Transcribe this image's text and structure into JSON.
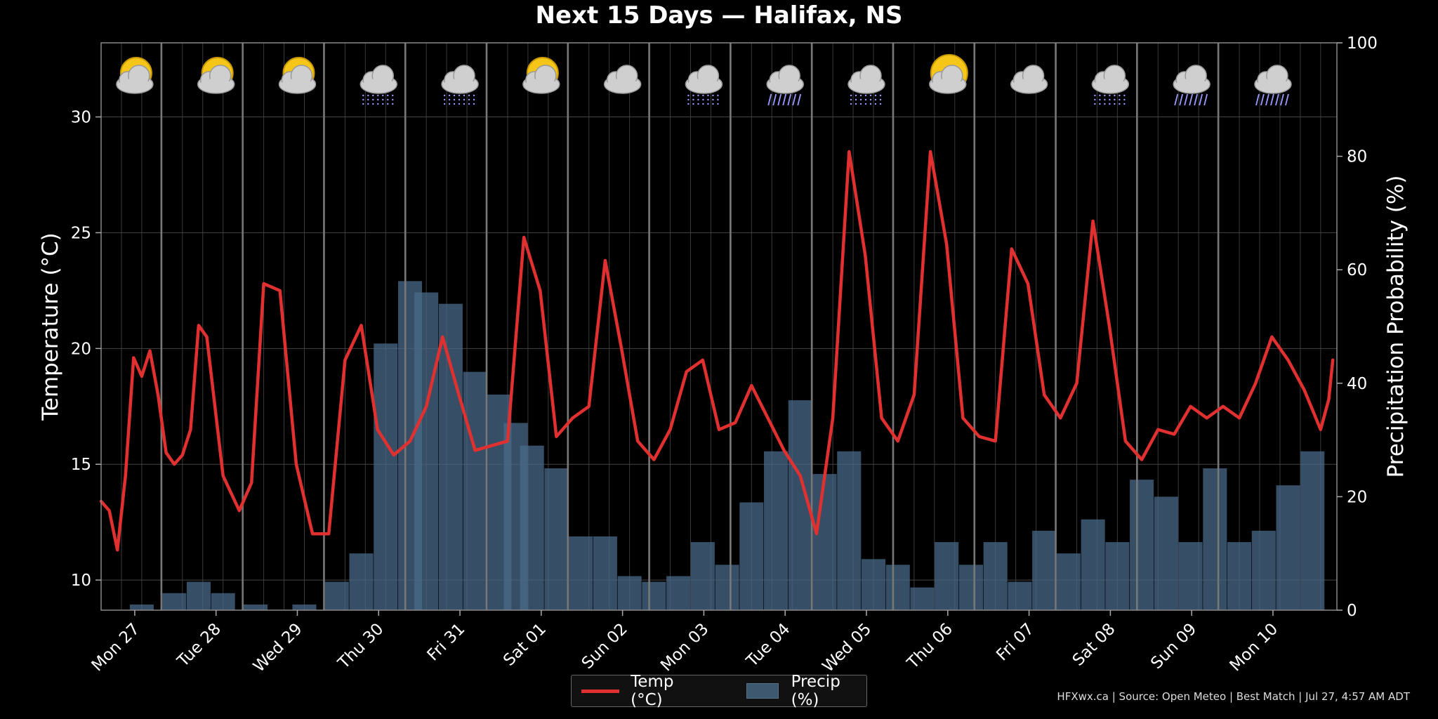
{
  "title": "Next 15 Days — Halifax, NS",
  "source_note": "HFXwx.ca | Source: Open Meteo | Best Match | Jul 27, 4:57 AM ADT",
  "legend": {
    "temp_label": "Temp (°C)",
    "precip_label": "Precip (%)"
  },
  "colors": {
    "temp": "#e03030",
    "precip": "#4a6a88",
    "background": "#000000",
    "sun": "#f5c518",
    "cloud": "#cfcfcf",
    "rain": "#9a9aff"
  },
  "chart_data": {
    "type": "line",
    "title": "Next 15 Days — Halifax, NS",
    "ylabel": "Temperature (°C)",
    "y2label": "Precipitation Probability (%)",
    "ylim": [
      8.7,
      33.2
    ],
    "y2lim": [
      0,
      100
    ],
    "yticks": [
      10,
      15,
      20,
      25,
      30
    ],
    "y2ticks": [
      0,
      20,
      40,
      60,
      80,
      100
    ],
    "xlim": [
      0,
      15.2
    ],
    "grid": true,
    "legend_position": "bottom-center",
    "day_labels": [
      "Mon 27",
      "Tue 28",
      "Wed 29",
      "Thu 30",
      "Fri 31",
      "Sat 01",
      "Sun 02",
      "Mon 03",
      "Tue 04",
      "Wed 05",
      "Thu 06",
      "Fri 07",
      "Sat 08",
      "Sun 09",
      "Mon 10"
    ],
    "day_icons": [
      "partly-cloudy-icon",
      "partly-cloudy-icon",
      "partly-cloudy-icon",
      "rain-icon",
      "rain-icon",
      "partly-cloudy-icon",
      "mostly-cloudy-icon",
      "rain-icon",
      "heavy-rain-icon",
      "rain-icon",
      "mostly-sunny-icon",
      "cloudy-icon",
      "rain-icon",
      "heavy-rain-icon",
      "heavy-rain-icon"
    ],
    "series": [
      {
        "name": "Temp (°C)",
        "x": [
          0,
          0.1,
          0.2,
          0.3,
          0.4,
          0.5,
          0.6,
          0.7,
          0.8,
          0.9,
          1.0,
          1.1,
          1.2,
          1.3,
          1.5,
          1.7,
          1.85,
          2.0,
          2.2,
          2.4,
          2.6,
          2.8,
          3.0,
          3.2,
          3.4,
          3.6,
          3.8,
          4.0,
          4.2,
          4.4,
          4.6,
          4.8,
          5.0,
          5.2,
          5.4,
          5.6,
          5.8,
          6.0,
          6.2,
          6.4,
          6.6,
          6.8,
          7.0,
          7.2,
          7.4,
          7.6,
          7.8,
          8.0,
          8.2,
          8.4,
          8.6,
          8.8,
          9.0,
          9.2,
          9.4,
          9.6,
          9.8,
          10.0,
          10.2,
          10.4,
          10.6,
          10.8,
          11.0,
          11.2,
          11.4,
          11.6,
          11.8,
          12.0,
          12.2,
          12.4,
          12.6,
          12.8,
          13.0,
          13.2,
          13.4,
          13.6,
          13.8,
          14.0,
          14.2,
          14.4,
          14.6,
          14.8,
          15.0,
          15.1,
          15.15
        ],
        "values": [
          13.4,
          13.0,
          11.3,
          14.5,
          19.6,
          18.8,
          19.9,
          18.0,
          15.5,
          15.0,
          15.4,
          16.5,
          21.0,
          20.5,
          14.5,
          13.0,
          14.2,
          22.8,
          22.5,
          15.0,
          12.0,
          12.0,
          19.5,
          21.0,
          16.5,
          15.4,
          16.0,
          17.5,
          20.5,
          18.0,
          15.6,
          15.8,
          16.0,
          24.8,
          22.5,
          16.2,
          17.0,
          17.5,
          23.8,
          20.0,
          16.0,
          15.2,
          16.5,
          19.0,
          19.5,
          16.5,
          16.8,
          18.4,
          17.0,
          15.6,
          14.5,
          12.0,
          17.0,
          28.5,
          24.0,
          17.0,
          16.0,
          18.0,
          28.5,
          24.5,
          17.0,
          16.2,
          16.0,
          24.3,
          22.8,
          18.0,
          17.0,
          18.5,
          25.5,
          21.0,
          16.0,
          15.2,
          16.5,
          16.3,
          17.5,
          17.0,
          17.5,
          17.0,
          18.5,
          20.5,
          19.5,
          18.2,
          16.5,
          17.8,
          19.5
        ]
      },
      {
        "name": "Precip (%)",
        "x": [
          0.5,
          0.9,
          1.2,
          1.5,
          1.9,
          2.2,
          2.5,
          2.9,
          3.2,
          3.5,
          3.8,
          4.0,
          4.3,
          4.6,
          4.9,
          5.1,
          5.3,
          5.6,
          5.9,
          6.2,
          6.5,
          6.8,
          7.1,
          7.4,
          7.7,
          8.0,
          8.3,
          8.6,
          8.9,
          9.2,
          9.5,
          9.8,
          10.1,
          10.4,
          10.7,
          11.0,
          11.3,
          11.6,
          11.9,
          12.2,
          12.5,
          12.8,
          13.1,
          13.4,
          13.7,
          14.0,
          14.3,
          14.6,
          14.9
        ],
        "values": [
          1,
          3,
          5,
          3,
          1,
          0,
          1,
          5,
          10,
          47,
          58,
          56,
          54,
          42,
          38,
          33,
          29,
          25,
          13,
          13,
          6,
          5,
          6,
          12,
          8,
          19,
          28,
          37,
          24,
          28,
          9,
          8,
          4,
          12,
          8,
          12,
          5,
          14,
          10,
          16,
          12,
          23,
          20,
          12,
          25,
          12,
          14,
          22,
          28
        ]
      }
    ]
  }
}
